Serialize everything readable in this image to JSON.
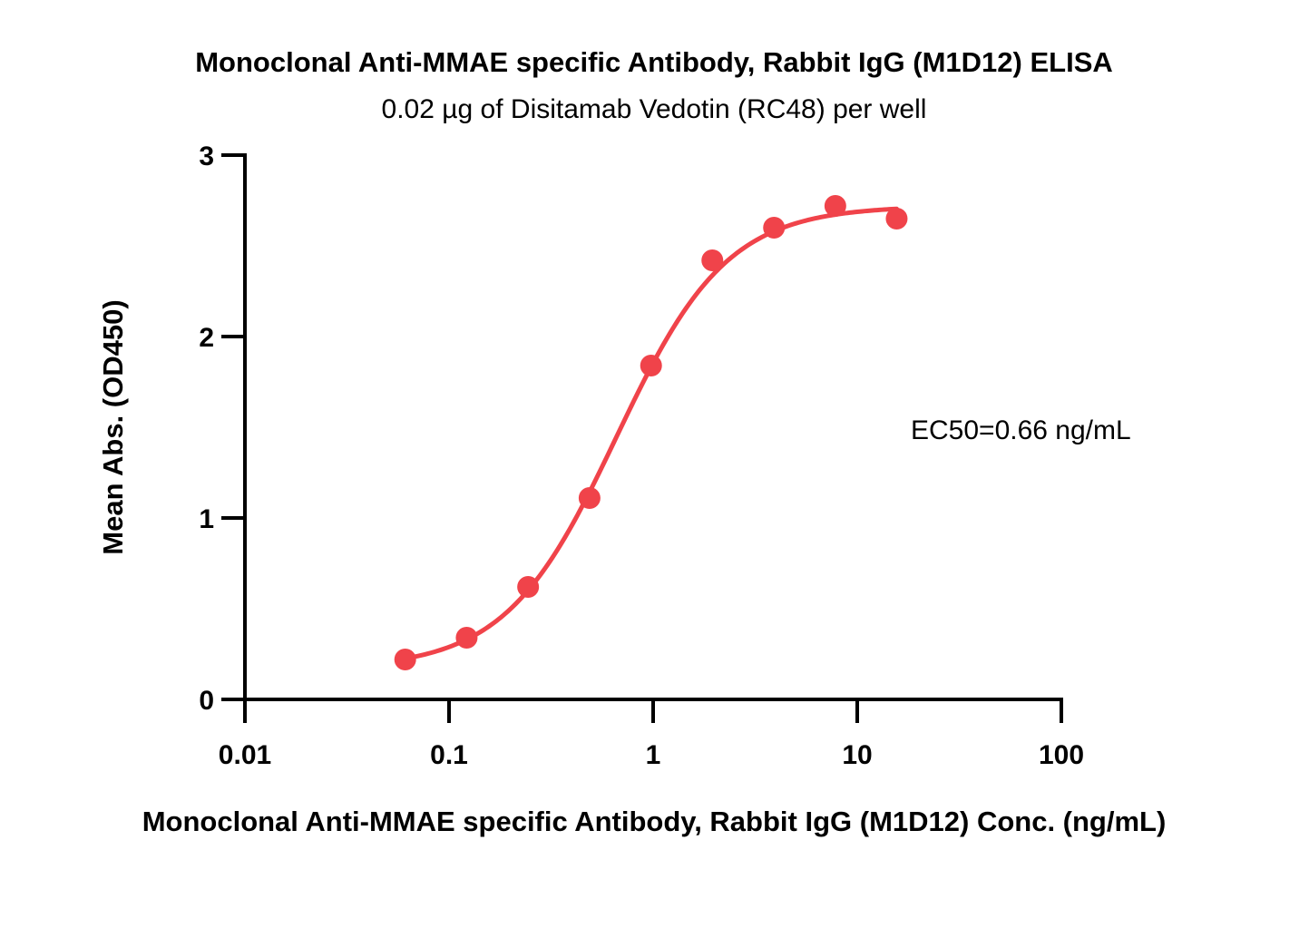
{
  "chart_data": {
    "type": "scatter",
    "title": "Monoclonal Anti-MMAE specific Antibody, Rabbit IgG (M1D12) ELISA",
    "subtitle": "0.02 µg of Disitamab Vedotin (RC48) per well",
    "xlabel": "Monoclonal Anti-MMAE specific Antibody, Rabbit IgG (M1D12) Conc. (ng/mL)",
    "ylabel": "Mean Abs. (OD450)",
    "x_scale": "log",
    "xlim": [
      0.01,
      100
    ],
    "ylim": [
      0,
      3
    ],
    "x_ticks": [
      0.01,
      0.1,
      1,
      10,
      100
    ],
    "x_tick_labels": [
      "0.01",
      "0.1",
      "1",
      "10",
      "100"
    ],
    "y_ticks": [
      0,
      1,
      2,
      3
    ],
    "y_tick_labels": [
      "0",
      "1",
      "2",
      "3"
    ],
    "grid": false,
    "annotation": "EC50=0.66 ng/mL",
    "color": "#f0434a",
    "series": [
      {
        "x": [
          0.061,
          0.122,
          0.244,
          0.488,
          0.977,
          1.95,
          3.91,
          7.81,
          15.6
        ],
        "y": [
          0.22,
          0.34,
          0.62,
          1.11,
          1.84,
          2.42,
          2.6,
          2.72,
          2.65
        ]
      }
    ],
    "fit_curve": {
      "model": "4PL",
      "bottom": 0.17,
      "top": 2.72,
      "ec50": 0.66,
      "hill": 1.6,
      "x_range": [
        0.061,
        15.6
      ]
    }
  }
}
